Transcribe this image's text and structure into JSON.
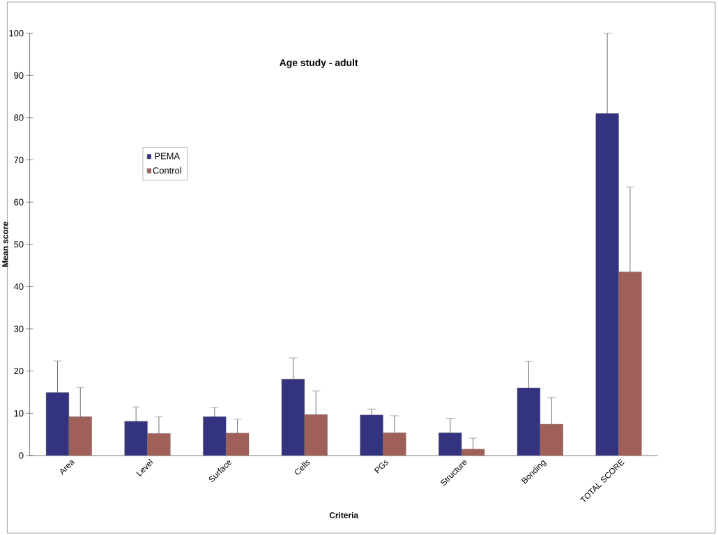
{
  "chart_data": {
    "type": "bar",
    "title": "Age study - adult",
    "xlabel": "Criteria",
    "ylabel": "Mean score",
    "categories": [
      "Area",
      "Level",
      "Surface",
      "Cells",
      "PGs",
      "Structure",
      "Bonding",
      "TOTAL SCORE"
    ],
    "series": [
      {
        "name": "PEMA",
        "color": "#333380",
        "values": [
          14.9,
          8.1,
          9.2,
          18.1,
          9.6,
          5.4,
          16.0,
          81.0
        ],
        "errors": [
          7.5,
          3.4,
          2.2,
          5.0,
          1.4,
          3.4,
          6.3,
          19.0
        ]
      },
      {
        "name": "Control",
        "color": "#a0605a",
        "values": [
          9.2,
          5.2,
          5.3,
          9.7,
          5.4,
          1.5,
          7.4,
          43.5
        ],
        "errors": [
          6.9,
          4.0,
          3.3,
          5.6,
          4.0,
          2.6,
          6.3,
          20.1
        ]
      }
    ],
    "ylim": [
      0,
      100
    ],
    "yticks": [
      0,
      10,
      20,
      30,
      40,
      50,
      60,
      70,
      80,
      90,
      100
    ],
    "grid": false,
    "legend": "top left"
  }
}
